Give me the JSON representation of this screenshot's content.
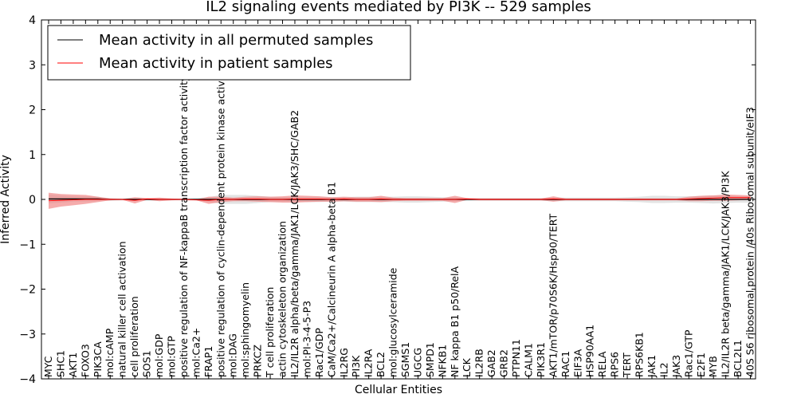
{
  "chart_data": {
    "type": "line",
    "title": "IL2 signaling events mediated by PI3K -- 529 samples",
    "xlabel": "Cellular Entities",
    "ylabel": "Inferred Activity",
    "ylim": [
      -4,
      4
    ],
    "yticks": [
      -4,
      -3,
      -2,
      -1,
      0,
      1,
      2,
      3,
      4
    ],
    "ytick_labels": [
      "−4",
      "−3",
      "−2",
      "−1",
      "0",
      "1",
      "2",
      "3",
      "4"
    ],
    "legend": {
      "location": "top-left",
      "entries": [
        {
          "label": "Mean activity in all permuted samples",
          "color": "#000000"
        },
        {
          "label": "Mean activity in patient samples",
          "color": "#ff0000"
        }
      ]
    },
    "categories": [
      "MYC",
      "SHC1",
      "AKT1",
      "FOXO3",
      "PIK3CA",
      "mol:cAMP",
      "natural killer cell activation",
      "cell proliferation",
      "SOS1",
      "mol:GDP",
      "mol:GTP",
      "positive regulation of NF-kappaB transcription factor activity",
      "mol:Ca2+",
      "FRAP1",
      "positive regulation of cyclin-dependent protein kinase activity",
      "mol:DAG",
      "mol:sphingomyelin",
      "PRKCZ",
      "T cell proliferation",
      "actin cytoskeleton organization",
      "IL2/IL2R alpha/beta/gamma/JAK1/LCK/JAK3/SHC/GAB2",
      "mol:PI-3-4-5-P3",
      "Rac1/GDP",
      "CaM/Ca2+/Calcineurin A alpha-beta B1",
      "IL2RG",
      "PI3K",
      "IL2RA",
      "BCL2",
      "mol:glucosylceramide",
      "SGMS1",
      "UGCG",
      "SMPD1",
      "NFKB1",
      "NF kappa B1 p50/RelA",
      "LCK",
      "IL2RB",
      "GAB2",
      "GRB2",
      "PTPN11",
      "CALM1",
      "PIK3R1",
      "AKT1/mTOR/p70S6K/Hsp90/TERT",
      "RAC1",
      "EIF3A",
      "HSP90AA1",
      "RELA",
      "RPS6",
      "TERT",
      "RPS6KB1",
      "JAK1",
      "IL2",
      "JAK3",
      "Rac1/GTP",
      "E2F1",
      "MYB",
      "IL2/IL2R beta/gamma/JAK1/LCK/JAK3/PI3K",
      "BCL2L1",
      "40S S6 ribosomal protein /40s Ribosomal subunit/eIF3"
    ],
    "series": [
      {
        "name": "Mean activity in all permuted samples",
        "color": "#000000",
        "values": [
          0.01,
          0.01,
          0.01,
          0.01,
          0.01,
          0.0,
          0.0,
          0.0,
          0.0,
          0.0,
          0.0,
          0.0,
          0.0,
          0.0,
          0.0,
          0.0,
          0.0,
          0.0,
          0.0,
          0.0,
          0.0,
          0.0,
          0.0,
          0.0,
          0.0,
          0.0,
          0.0,
          0.0,
          0.0,
          0.0,
          0.0,
          0.0,
          0.0,
          0.0,
          0.0,
          0.0,
          0.0,
          0.0,
          0.0,
          0.0,
          0.0,
          0.0,
          0.0,
          0.0,
          0.0,
          0.0,
          0.0,
          0.0,
          0.0,
          0.0,
          0.0,
          0.0,
          0.0,
          0.0,
          0.0,
          0.0,
          0.0,
          0.0
        ],
        "band": [
          0.1,
          0.08,
          0.06,
          0.06,
          0.05,
          0.03,
          0.02,
          0.02,
          0.02,
          0.02,
          0.02,
          0.02,
          0.03,
          0.05,
          0.1,
          0.1,
          0.1,
          0.08,
          0.06,
          0.05,
          0.05,
          0.06,
          0.06,
          0.05,
          0.05,
          0.06,
          0.06,
          0.06,
          0.06,
          0.07,
          0.07,
          0.06,
          0.05,
          0.04,
          0.03,
          0.03,
          0.03,
          0.03,
          0.03,
          0.03,
          0.03,
          0.04,
          0.04,
          0.04,
          0.04,
          0.04,
          0.04,
          0.05,
          0.06,
          0.08,
          0.08,
          0.07,
          0.07,
          0.08,
          0.09,
          0.08,
          0.07,
          0.07
        ]
      },
      {
        "name": "Mean activity in patient samples",
        "color": "#ff0000",
        "values": [
          -0.03,
          -0.02,
          -0.01,
          0.0,
          0.0,
          0.0,
          0.0,
          -0.02,
          0.01,
          0.0,
          0.0,
          0.0,
          -0.01,
          -0.02,
          0.0,
          0.0,
          0.01,
          0.01,
          0.0,
          0.0,
          0.01,
          0.01,
          0.01,
          0.0,
          0.01,
          0.0,
          0.0,
          0.01,
          0.0,
          0.0,
          0.0,
          0.0,
          0.0,
          0.0,
          0.01,
          0.0,
          0.0,
          0.0,
          0.0,
          0.0,
          0.0,
          0.01,
          0.0,
          0.0,
          0.0,
          0.0,
          0.0,
          0.0,
          0.0,
          0.0,
          0.0,
          0.0,
          0.01,
          0.02,
          0.03,
          0.04,
          0.04,
          0.04
        ],
        "band": [
          0.18,
          0.14,
          0.12,
          0.1,
          0.06,
          0.02,
          0.01,
          0.07,
          0.02,
          0.04,
          0.02,
          0.01,
          0.01,
          0.08,
          0.06,
          0.04,
          0.05,
          0.06,
          0.06,
          0.07,
          0.08,
          0.07,
          0.06,
          0.05,
          0.05,
          0.05,
          0.05,
          0.07,
          0.04,
          0.03,
          0.03,
          0.03,
          0.03,
          0.08,
          0.02,
          0.02,
          0.02,
          0.02,
          0.02,
          0.02,
          0.02,
          0.06,
          0.02,
          0.02,
          0.02,
          0.02,
          0.02,
          0.02,
          0.02,
          0.02,
          0.02,
          0.02,
          0.05,
          0.06,
          0.06,
          0.07,
          0.06,
          0.05
        ]
      }
    ]
  }
}
